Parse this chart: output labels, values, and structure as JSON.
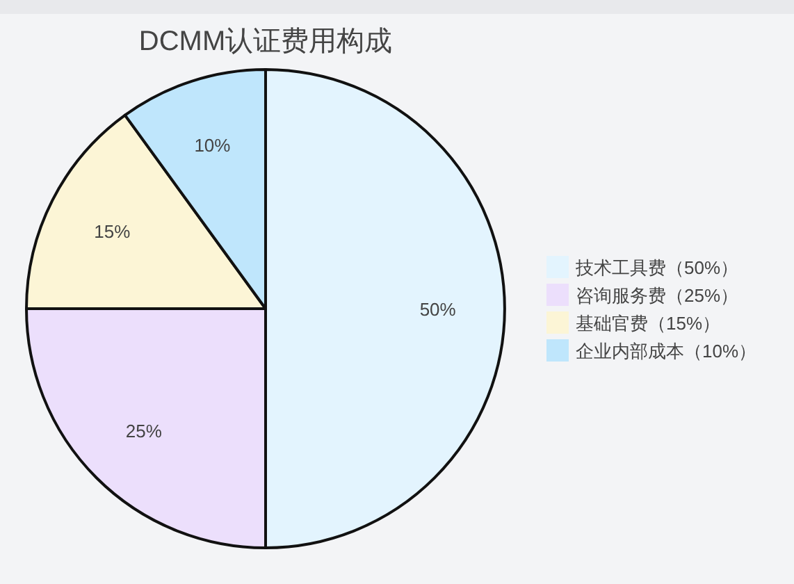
{
  "chart_data": {
    "type": "pie",
    "title": "DCMM认证费用构成",
    "categories": [
      "技术工具费（50%）",
      "咨询服务费（25%）",
      "基础官费（15%）",
      "企业内部成本（10%）"
    ],
    "values": [
      50,
      25,
      15,
      10
    ],
    "colors": [
      "#e3f4fe",
      "#ecdffc",
      "#fcf5d6",
      "#bfe6fc"
    ],
    "value_labels": [
      "50%",
      "25%",
      "15%",
      "10%"
    ],
    "legend": "right"
  }
}
